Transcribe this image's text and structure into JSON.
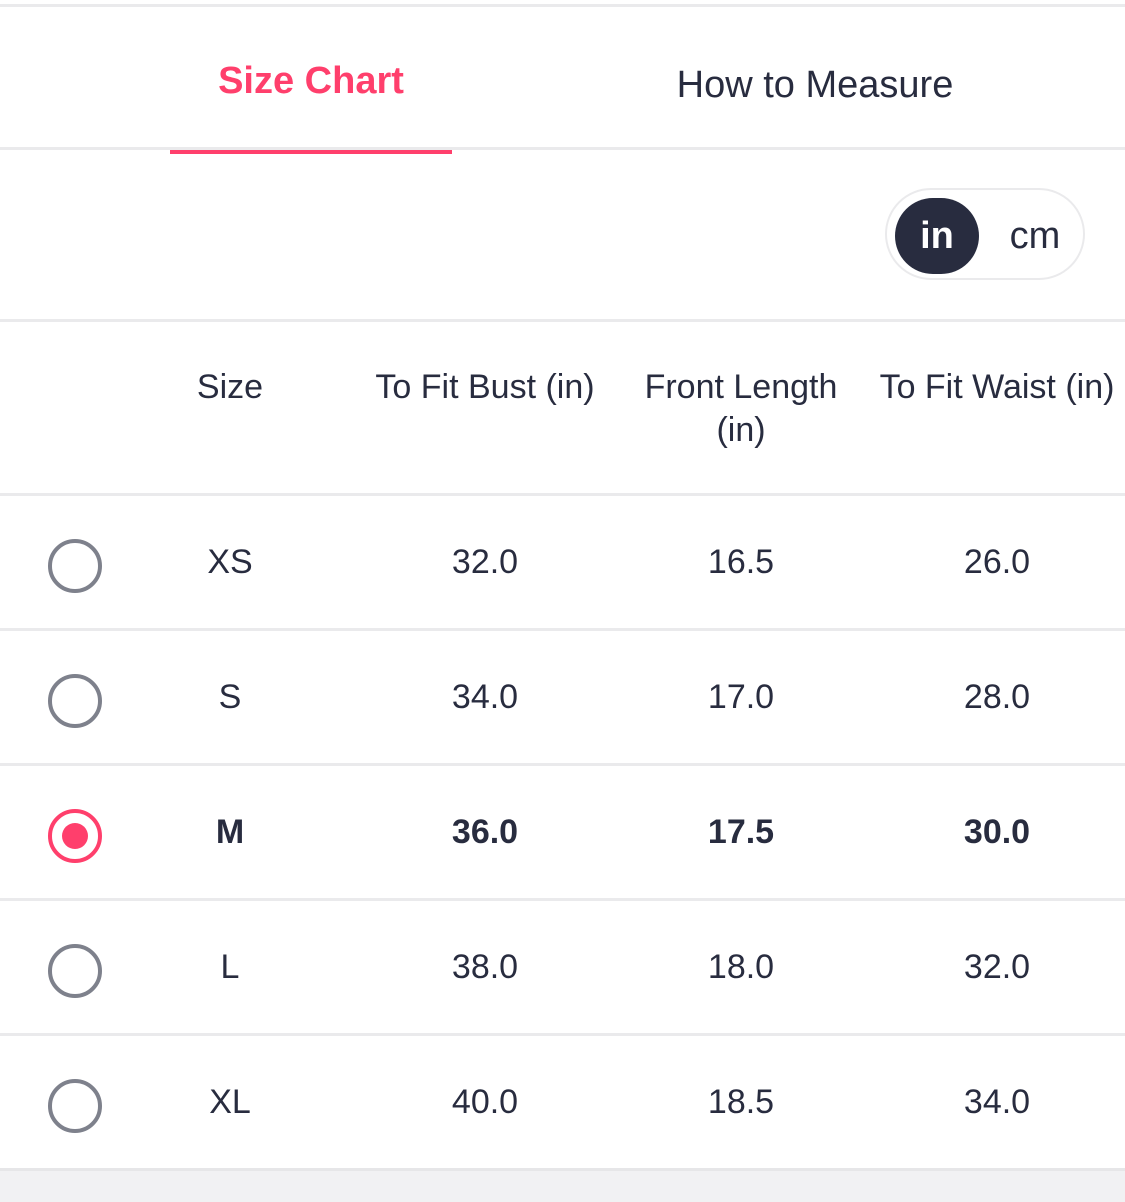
{
  "tabs": [
    {
      "label": "Size Chart",
      "active": true
    },
    {
      "label": "How to Measure",
      "active": false
    }
  ],
  "unit_toggle": {
    "options": [
      "in",
      "cm"
    ],
    "selected": "in"
  },
  "table": {
    "headers": {
      "size": "Size",
      "bust": "To Fit Bust (in)",
      "length_line1": "Front Length",
      "length_line2": "(in)",
      "waist": "To Fit Waist (in)"
    },
    "rows": [
      {
        "size": "XS",
        "bust": "32.0",
        "length": "16.5",
        "waist": "26.0",
        "selected": false
      },
      {
        "size": "S",
        "bust": "34.0",
        "length": "17.0",
        "waist": "28.0",
        "selected": false
      },
      {
        "size": "M",
        "bust": "36.0",
        "length": "17.5",
        "waist": "30.0",
        "selected": true
      },
      {
        "size": "L",
        "bust": "38.0",
        "length": "18.0",
        "waist": "32.0",
        "selected": false
      },
      {
        "size": "XL",
        "bust": "40.0",
        "length": "18.5",
        "waist": "34.0",
        "selected": false
      }
    ]
  },
  "colors": {
    "accent": "#ff3f6c",
    "text": "#282c3f",
    "radio_border": "#7e818c",
    "divider": "#eaeaec"
  }
}
